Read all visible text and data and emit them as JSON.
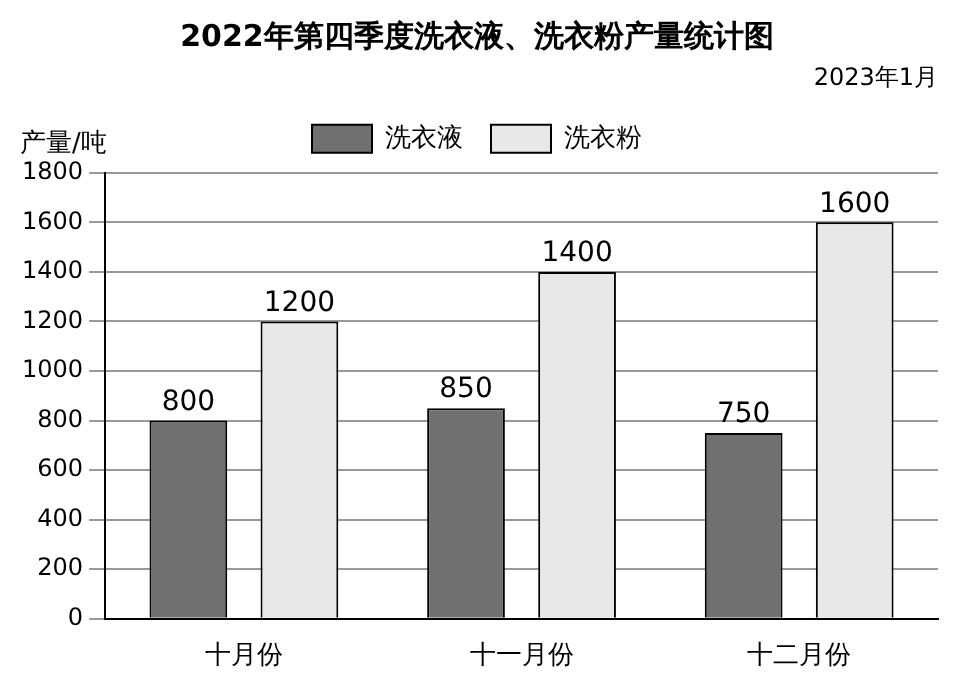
{
  "chart_data": {
    "type": "bar",
    "title": "2022年第四季度洗衣液、洗衣粉产量统计图",
    "subtitle": "2023年1月",
    "ylabel": "产量/吨",
    "categories": [
      "十月份",
      "十一月份",
      "十二月份"
    ],
    "series": [
      {
        "name": "洗衣液",
        "color": "#707070",
        "values": [
          800,
          850,
          750
        ]
      },
      {
        "name": "洗衣粉",
        "color": "#e8e8e8",
        "values": [
          1200,
          1400,
          1600
        ]
      }
    ],
    "ylim": [
      0,
      1800
    ],
    "yticks": [
      0,
      200,
      400,
      600,
      800,
      1000,
      1200,
      1400,
      1600,
      1800
    ],
    "grid": "y",
    "legend": "top",
    "data_labels": true
  }
}
